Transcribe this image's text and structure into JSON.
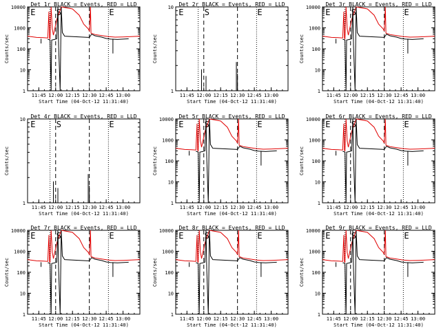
{
  "chart_data": [
    {
      "type": "line",
      "title": "Det 1r BLACK = Events, RED = LLD",
      "xlabel": "Start Time (04-Oct-12 11:31:40)",
      "ylabel": "Counts/sec",
      "y_scale": "log",
      "ylim": [
        1,
        10000
      ],
      "y_ticks": [
        "1",
        "10",
        "100",
        "1000",
        "10000"
      ],
      "x_ticks": [
        "11:45",
        "12:00",
        "12:15",
        "12:30",
        "12:45",
        "13:00"
      ],
      "markers": [
        "E",
        "S",
        "E"
      ],
      "profile": "full"
    },
    {
      "type": "line",
      "title": "Det 2r BLACK = Events, RED = LLD",
      "xlabel": "Start Time (04-Oct-12 11:31:40)",
      "ylabel": "Counts/sec",
      "y_scale": "log",
      "ylim": [
        1,
        10
      ],
      "y_ticks": [
        "1",
        "10"
      ],
      "x_ticks": [
        "11:45",
        "12:00",
        "12:15",
        "12:30",
        "12:45",
        "13:00"
      ],
      "markers": [
        "E",
        "S",
        "E"
      ],
      "profile": "spikes"
    },
    {
      "type": "line",
      "title": "Det 3r BLACK = Events, RED = LLD",
      "xlabel": "Start Time (04-Oct-12 11:31:40)",
      "ylabel": "Counts/sec",
      "y_scale": "log",
      "ylim": [
        1,
        10000
      ],
      "y_ticks": [
        "1",
        "10",
        "100",
        "1000",
        "10000"
      ],
      "x_ticks": [
        "11:45",
        "12:00",
        "12:15",
        "12:30",
        "12:45",
        "13:00"
      ],
      "markers": [
        "E",
        "S",
        "E"
      ],
      "profile": "full"
    },
    {
      "type": "line",
      "title": "Det 4r BLACK = Events, RED = LLD",
      "xlabel": "Start Time (04-Oct-12 11:31:40)",
      "ylabel": "Counts/sec",
      "y_scale": "log",
      "ylim": [
        1,
        10
      ],
      "y_ticks": [
        "1",
        "10"
      ],
      "x_ticks": [
        "11:45",
        "12:00",
        "12:15",
        "12:30",
        "12:45",
        "13:00"
      ],
      "markers": [
        "E",
        "S",
        "E"
      ],
      "profile": "spikes"
    },
    {
      "type": "line",
      "title": "Det 5r BLACK = Events, RED = LLD",
      "xlabel": "Start Time (04-Oct-12 11:31:40)",
      "ylabel": "Counts/sec",
      "y_scale": "log",
      "ylim": [
        1,
        10000
      ],
      "y_ticks": [
        "1",
        "10",
        "100",
        "1000",
        "10000"
      ],
      "x_ticks": [
        "11:45",
        "12:00",
        "12:15",
        "12:30",
        "12:45",
        "13:00"
      ],
      "markers": [
        "E",
        "S",
        "E"
      ],
      "profile": "full"
    },
    {
      "type": "line",
      "title": "Det 6r BLACK = Events, RED = LLD",
      "xlabel": "Start Time (04-Oct-12 11:31:40)",
      "ylabel": "Counts/sec",
      "y_scale": "log",
      "ylim": [
        1,
        10000
      ],
      "y_ticks": [
        "1",
        "10",
        "100",
        "1000",
        "10000"
      ],
      "x_ticks": [
        "11:45",
        "12:00",
        "12:15",
        "12:30",
        "12:45",
        "13:00"
      ],
      "markers": [
        "E",
        "S",
        "E"
      ],
      "profile": "full"
    },
    {
      "type": "line",
      "title": "Det 7r BLACK = Events, RED = LLD",
      "xlabel": "Start Time (04-Oct-12 11:31:40)",
      "ylabel": "Counts/sec",
      "y_scale": "log",
      "ylim": [
        1,
        10000
      ],
      "y_ticks": [
        "1",
        "10",
        "100",
        "1000",
        "10000"
      ],
      "x_ticks": [
        "11:45",
        "12:00",
        "12:15",
        "12:30",
        "12:45",
        "13:00"
      ],
      "markers": [
        "E",
        "S",
        "E"
      ],
      "profile": "full"
    },
    {
      "type": "line",
      "title": "Det 8r BLACK = Events, RED = LLD",
      "xlabel": "Start Time (04-Oct-12 11:31:40)",
      "ylabel": "Counts/sec",
      "y_scale": "log",
      "ylim": [
        1,
        10000
      ],
      "y_ticks": [
        "1",
        "10",
        "100",
        "1000",
        "10000"
      ],
      "x_ticks": [
        "11:45",
        "12:00",
        "12:15",
        "12:30",
        "12:45",
        "13:00"
      ],
      "markers": [
        "E",
        "S",
        "E"
      ],
      "profile": "full"
    },
    {
      "type": "line",
      "title": "Det 9r BLACK = Events, RED = LLD",
      "xlabel": "Start Time (04-Oct-12 11:31:40)",
      "ylabel": "Counts/sec",
      "y_scale": "log",
      "ylim": [
        1,
        10000
      ],
      "y_ticks": [
        "1",
        "10",
        "100",
        "1000",
        "10000"
      ],
      "x_ticks": [
        "11:45",
        "12:00",
        "12:15",
        "12:30",
        "12:45",
        "13:00"
      ],
      "markers": [
        "E",
        "S",
        "E"
      ],
      "profile": "full"
    }
  ],
  "colors": {
    "events": "#000000",
    "lld": "#e00000",
    "axis": "#000000"
  }
}
